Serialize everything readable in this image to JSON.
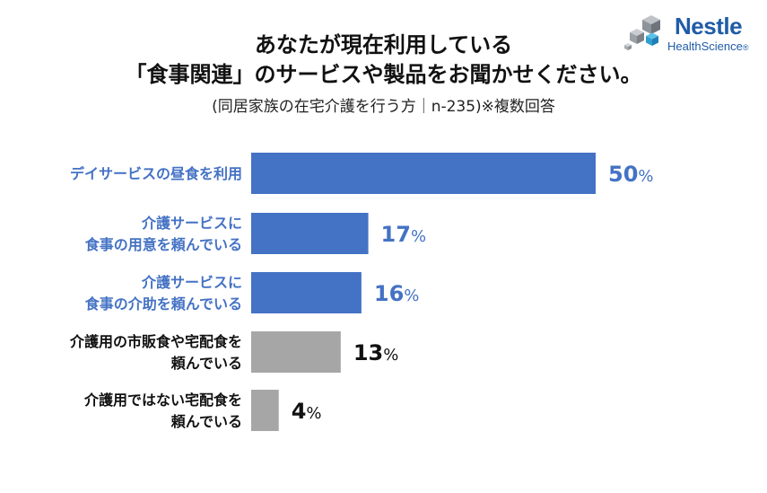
{
  "title_line1": "あなたが現在利用している",
  "title_line2": "「食事関連」のサービスや製品をお聞かせください。",
  "subtitle": "(同居家族の在宅介護を行う方｜n-235)※複数回答",
  "logo": {
    "brand": "Nestle",
    "sub": "HealthScience",
    "icon": "nestle-cube-logo-icon"
  },
  "colors": {
    "highlight": "#4472c4",
    "other": "#a6a6a6",
    "highlight_text": "#4472c4",
    "other_text": "#111111"
  },
  "chart_data": {
    "type": "bar",
    "orientation": "horizontal",
    "unit": "%",
    "categories": [
      [
        "デイサービスの昼食を利用"
      ],
      [
        "介護サービスに",
        "食事の用意を頼んでいる"
      ],
      [
        "介護サービスに",
        "食事の介助を頼んでいる"
      ],
      [
        "介護用の市販食や宅配食を",
        "頼んでいる"
      ],
      [
        "介護用ではない宅配食を",
        "頼んでいる"
      ]
    ],
    "values": [
      50,
      17,
      16,
      13,
      4
    ],
    "highlighted": [
      true,
      true,
      true,
      false,
      false
    ],
    "grid": false,
    "legend": "none"
  }
}
